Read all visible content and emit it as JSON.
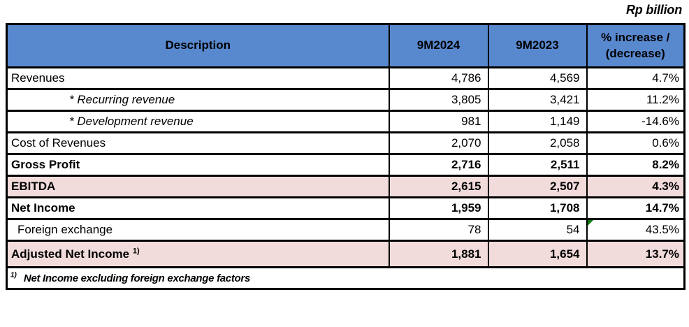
{
  "unit_label": "Rp billion",
  "colors": {
    "header_blue": "#5888CE",
    "highlight_pink": "#F2DCDB",
    "border_black": "#000000",
    "flag_green": "#0B7A0B"
  },
  "table": {
    "headers": [
      "Description",
      "9M2024",
      "9M2023",
      "% increase / (decrease)"
    ],
    "rows": [
      {
        "label": "Revenues",
        "y2024": "4,786",
        "y2023": "4,569",
        "pct": "4.7%"
      },
      {
        "label": "* Recurring revenue",
        "y2024": "3,805",
        "y2023": "3,421",
        "pct": "11.2%"
      },
      {
        "label": "* Development revenue",
        "y2024": "981",
        "y2023": "1,149",
        "pct": "-14.6%"
      },
      {
        "label": "Cost of Revenues",
        "y2024": "2,070",
        "y2023": "2,058",
        "pct": "0.6%"
      },
      {
        "label": "Gross Profit",
        "y2024": "2,716",
        "y2023": "2,511",
        "pct": "8.2%"
      },
      {
        "label": "EBITDA",
        "y2024": "2,615",
        "y2023": "2,507",
        "pct": "4.3%"
      },
      {
        "label": "Net Income",
        "y2024": "1,959",
        "y2023": "1,708",
        "pct": "14.7%"
      },
      {
        "label": "Foreign exchange",
        "y2024": "78",
        "y2023": "54",
        "pct": "43.5%"
      },
      {
        "label": "Adjusted Net Income",
        "sup": "1)",
        "y2024": "1,881",
        "y2023": "1,654",
        "pct": "13.7%"
      }
    ],
    "footnote": {
      "sup": "1)",
      "text": "Net Income excluding foreign exchange factors"
    }
  }
}
